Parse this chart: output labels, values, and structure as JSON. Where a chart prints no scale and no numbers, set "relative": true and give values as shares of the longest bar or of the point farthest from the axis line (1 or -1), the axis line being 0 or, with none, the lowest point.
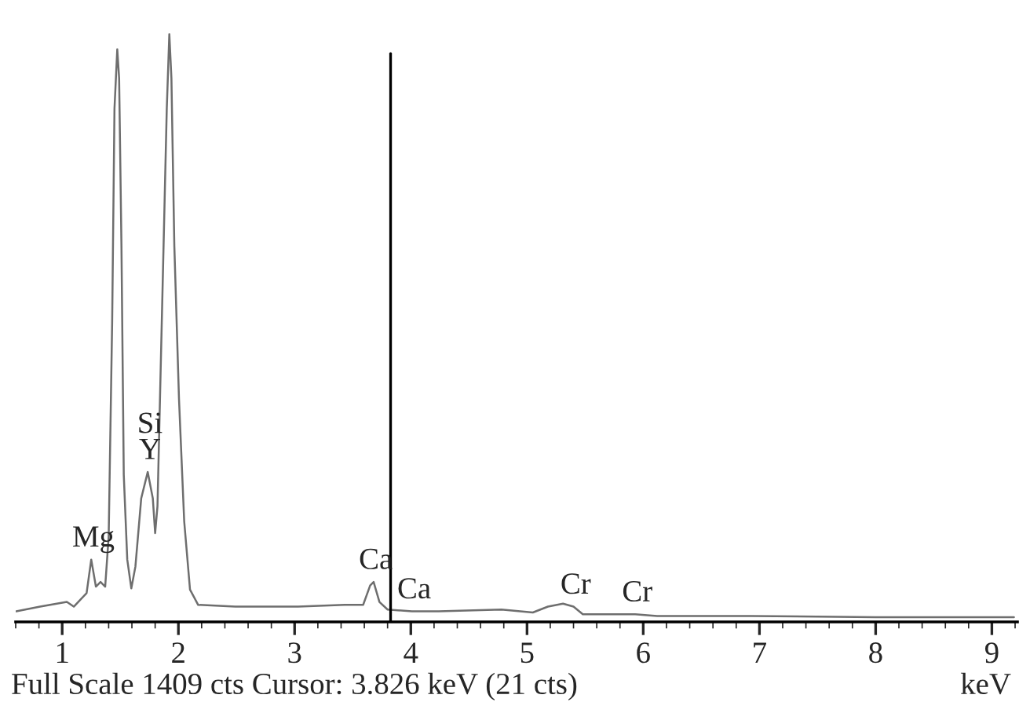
{
  "chart_data": {
    "type": "line",
    "relative": true,
    "xlabel": "keV",
    "tick_labels": "x",
    "grid": false,
    "legend": false,
    "marker": "none",
    "line_style": "solid",
    "xlim": [
      0.6,
      9.22
    ],
    "xticks": [
      1,
      2,
      3,
      4,
      5,
      6,
      7,
      8,
      9
    ],
    "series": [
      {
        "color": "#6e6e6e",
        "x": [
          0.605,
          0.81,
          1.04,
          1.1,
          1.21,
          1.25,
          1.29,
          1.33,
          1.37,
          1.4,
          1.43,
          1.45,
          1.474,
          1.49,
          1.51,
          1.53,
          1.56,
          1.595,
          1.63,
          1.68,
          1.736,
          1.78,
          1.8,
          1.82,
          1.857,
          1.9,
          1.922,
          1.94,
          1.965,
          2.005,
          2.05,
          2.1,
          2.17,
          2.49,
          3.03,
          3.43,
          3.59,
          3.65,
          3.68,
          3.73,
          3.8,
          4.01,
          4.24,
          4.78,
          5.05,
          5.18,
          5.31,
          5.4,
          5.48,
          5.93,
          6.12,
          6.93,
          8.0,
          9.19
        ],
        "values": [
          0.018,
          0.026,
          0.034,
          0.026,
          0.049,
          0.106,
          0.06,
          0.068,
          0.06,
          0.145,
          0.51,
          0.873,
          0.974,
          0.925,
          0.64,
          0.25,
          0.106,
          0.057,
          0.094,
          0.21,
          0.255,
          0.21,
          0.151,
          0.197,
          0.51,
          0.873,
          1.0,
          0.925,
          0.64,
          0.38,
          0.171,
          0.055,
          0.029,
          0.026,
          0.026,
          0.029,
          0.029,
          0.062,
          0.068,
          0.034,
          0.021,
          0.018,
          0.018,
          0.021,
          0.016,
          0.026,
          0.031,
          0.026,
          0.013,
          0.013,
          0.01,
          0.01,
          0.008,
          0.008
        ]
      }
    ],
    "ref_lines": [
      {
        "axis": "x",
        "value": 3.826,
        "color": "#000000"
      }
    ],
    "annotations": [
      {
        "text": "Mg",
        "x": 1.25,
        "y": 0.106
      },
      {
        "text": "Si",
        "x": 1.736,
        "y": 0.255
      },
      {
        "text": "Y",
        "x": 1.736,
        "y": 0.255
      },
      {
        "text": "Ca",
        "x": 3.68,
        "y": 0.068
      },
      {
        "text": "Ca",
        "x": 4.01,
        "y": 0.018
      },
      {
        "text": "Cr",
        "x": 5.4,
        "y": 0.026
      },
      {
        "text": "Cr",
        "x": 5.93,
        "y": 0.013
      },
      "Full Scale 1409 cts Cursor: 3.826 keV (21 cts)"
    ]
  }
}
